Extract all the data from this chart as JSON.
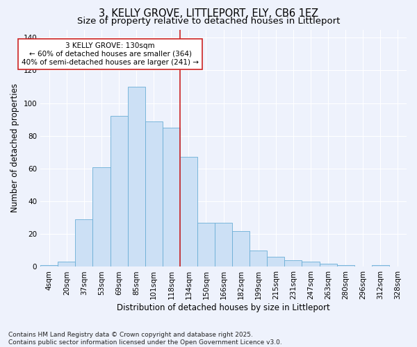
{
  "title": "3, KELLY GROVE, LITTLEPORT, ELY, CB6 1EZ",
  "subtitle": "Size of property relative to detached houses in Littleport",
  "xlabel": "Distribution of detached houses by size in Littleport",
  "ylabel": "Number of detached properties",
  "footer": "Contains HM Land Registry data © Crown copyright and database right 2025.\nContains public sector information licensed under the Open Government Licence v3.0.",
  "categories": [
    "4sqm",
    "20sqm",
    "37sqm",
    "53sqm",
    "69sqm",
    "85sqm",
    "101sqm",
    "118sqm",
    "134sqm",
    "150sqm",
    "166sqm",
    "182sqm",
    "199sqm",
    "215sqm",
    "231sqm",
    "247sqm",
    "263sqm",
    "280sqm",
    "296sqm",
    "312sqm",
    "328sqm"
  ],
  "values": [
    1,
    3,
    29,
    61,
    92,
    110,
    89,
    85,
    67,
    27,
    27,
    22,
    10,
    6,
    4,
    3,
    2,
    1,
    0,
    1
  ],
  "bar_color": "#cce0f5",
  "bar_edge_color": "#6aaed6",
  "vline_index": 7.5,
  "annotation_text": "3 KELLY GROVE: 130sqm\n← 60% of detached houses are smaller (364)\n40% of semi-detached houses are larger (241) →",
  "vline_color": "#cc2222",
  "annotation_box_color": "#ffffff",
  "annotation_box_edge": "#cc2222",
  "ylim": [
    0,
    145
  ],
  "yticks": [
    0,
    20,
    40,
    60,
    80,
    100,
    120,
    140
  ],
  "background_color": "#eef2fc",
  "grid_color": "#ffffff",
  "title_fontsize": 10.5,
  "subtitle_fontsize": 9.5,
  "axis_label_fontsize": 8.5,
  "tick_fontsize": 7.5,
  "annotation_fontsize": 7.5,
  "footer_fontsize": 6.5
}
